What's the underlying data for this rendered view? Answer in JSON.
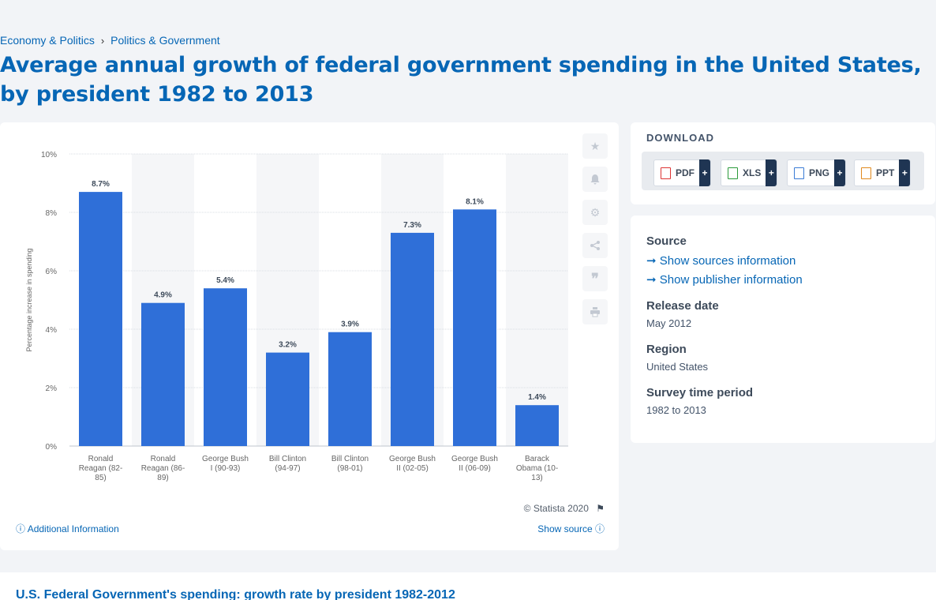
{
  "breadcrumb": {
    "item1": "Economy & Politics",
    "separator": "›",
    "item2": "Politics & Government"
  },
  "page_title": "Average annual growth of federal government spending in the United States, by president 1982 to 2013",
  "chart_tools": [
    "star-icon",
    "bell-icon",
    "gear-icon",
    "share-icon",
    "quote-icon",
    "print-icon"
  ],
  "chart_footer": {
    "copyright": "© Statista 2020",
    "additional_info": "Additional Information",
    "show_source": "Show source"
  },
  "download": {
    "title": "DOWNLOAD",
    "buttons": [
      {
        "label": "PDF",
        "plus": "+",
        "icon": "pdf-file-icon"
      },
      {
        "label": "XLS",
        "plus": "+",
        "icon": "xls-file-icon"
      },
      {
        "label": "PNG",
        "plus": "+",
        "icon": "png-file-icon"
      },
      {
        "label": "PPT",
        "plus": "+",
        "icon": "ppt-file-icon"
      }
    ]
  },
  "info": {
    "source_heading": "Source",
    "show_sources": "Show sources information",
    "show_publisher": "Show publisher information",
    "release_heading": "Release date",
    "release_value": "May 2012",
    "region_heading": "Region",
    "region_value": "United States",
    "survey_heading": "Survey time period",
    "survey_value": "1982 to 2013"
  },
  "bottom_title": "U.S. Federal Government's spending: growth rate by president 1982-2012",
  "colors": {
    "bar": "#2f6fd8",
    "accent": "#0666b5",
    "band": "#f5f6f8"
  },
  "chart_data": {
    "type": "bar",
    "categories": [
      [
        "Ronald",
        "Reagan (82-",
        "85)"
      ],
      [
        "Ronald",
        "Reagan (86-",
        "89)"
      ],
      [
        "George Bush",
        "I (90-93)"
      ],
      [
        "Bill Clinton",
        "(94-97)"
      ],
      [
        "Bill Clinton",
        "(98-01)"
      ],
      [
        "George Bush",
        "II (02-05)"
      ],
      [
        "George Bush",
        "II (06-09)"
      ],
      [
        "Barack",
        "Obama (10-",
        "13)"
      ]
    ],
    "values": [
      8.7,
      4.9,
      5.4,
      3.2,
      3.9,
      7.3,
      8.1,
      1.4
    ],
    "data_labels": [
      "8.7%",
      "4.9%",
      "5.4%",
      "3.2%",
      "3.9%",
      "7.3%",
      "8.1%",
      "1.4%"
    ],
    "ylabel": "Percentage increase in spending",
    "ylim": [
      0,
      10
    ],
    "yticks": [
      "0%",
      "2%",
      "4%",
      "6%",
      "8%",
      "10%"
    ],
    "ytick_values": [
      0,
      2,
      4,
      6,
      8,
      10
    ],
    "grid": true
  }
}
